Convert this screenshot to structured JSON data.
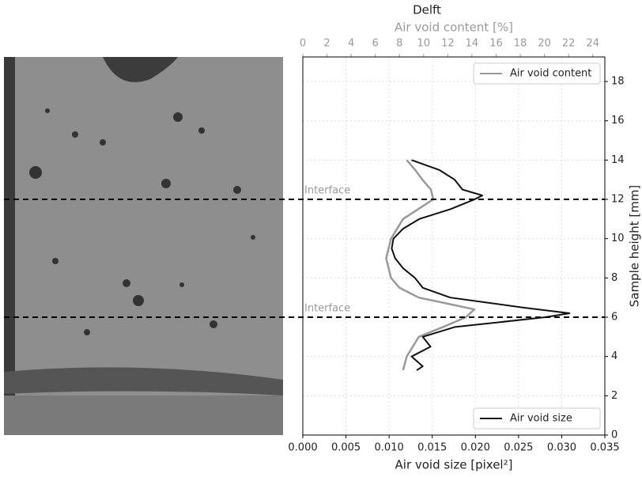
{
  "chart_data": {
    "type": "line",
    "title": "Delft",
    "x_label": "Air void size [pixel²]",
    "x2_label": "Air void content [%]",
    "y_label": "Sample height [mm]",
    "xlim": [
      0,
      0.035
    ],
    "xticks": [
      {
        "value": 0,
        "label": "0.000"
      },
      0.005,
      {
        "value": 0.01,
        "label": "0.010"
      },
      0.015,
      {
        "value": 0.02,
        "label": "0.020"
      },
      0.025,
      {
        "value": 0.03,
        "label": "0.030"
      },
      0.035
    ],
    "x2lim": [
      0,
      25
    ],
    "x2ticks": [
      0,
      2,
      4,
      6,
      8,
      10,
      12,
      14,
      16,
      18,
      20,
      22,
      24
    ],
    "ylim": [
      0,
      19.25
    ],
    "yticks": [
      0,
      2,
      4,
      6,
      8,
      10,
      12,
      14,
      16,
      18
    ],
    "grid": true,
    "series": [
      {
        "name": "Air void content",
        "color": "#999999",
        "axis": "x2",
        "legend": "upper right",
        "values": [
          8.3,
          8.6,
          9.6,
          11.6,
          13.5,
          14.2,
          9.6,
          8.0,
          7.3,
          6.9,
          7.3,
          8.3,
          10.8,
          10.6,
          9.9,
          9.3,
          8.6
        ],
        "heights": [
          3.3,
          4.0,
          5.0,
          5.5,
          6.0,
          6.4,
          7.0,
          7.5,
          8.0,
          9.0,
          10.0,
          11.0,
          12.0,
          12.5,
          13.0,
          13.5,
          14.0
        ]
      },
      {
        "name": "Air void size",
        "color": "#111111",
        "axis": "x",
        "legend": "lower right",
        "values": [
          0.0132,
          0.0139,
          0.0126,
          0.0148,
          0.0139,
          0.0176,
          0.0281,
          0.0309,
          0.0254,
          0.0171,
          0.0139,
          0.013,
          0.0116,
          0.0107,
          0.0103,
          0.0105,
          0.0116,
          0.0135,
          0.0171,
          0.0199,
          0.0208,
          0.0185,
          0.0176,
          0.0158,
          0.0126
        ],
        "heights": [
          3.3,
          3.5,
          4.0,
          4.5,
          5.0,
          5.5,
          6.0,
          6.2,
          6.5,
          7.0,
          7.5,
          8.0,
          8.5,
          9.0,
          9.5,
          10.0,
          10.5,
          11.0,
          11.5,
          12.0,
          12.2,
          12.5,
          13.0,
          13.5,
          14.0
        ]
      }
    ],
    "annotations": [
      {
        "text": "Interface",
        "y": 6
      },
      {
        "text": "Interface",
        "y": 12
      }
    ]
  }
}
